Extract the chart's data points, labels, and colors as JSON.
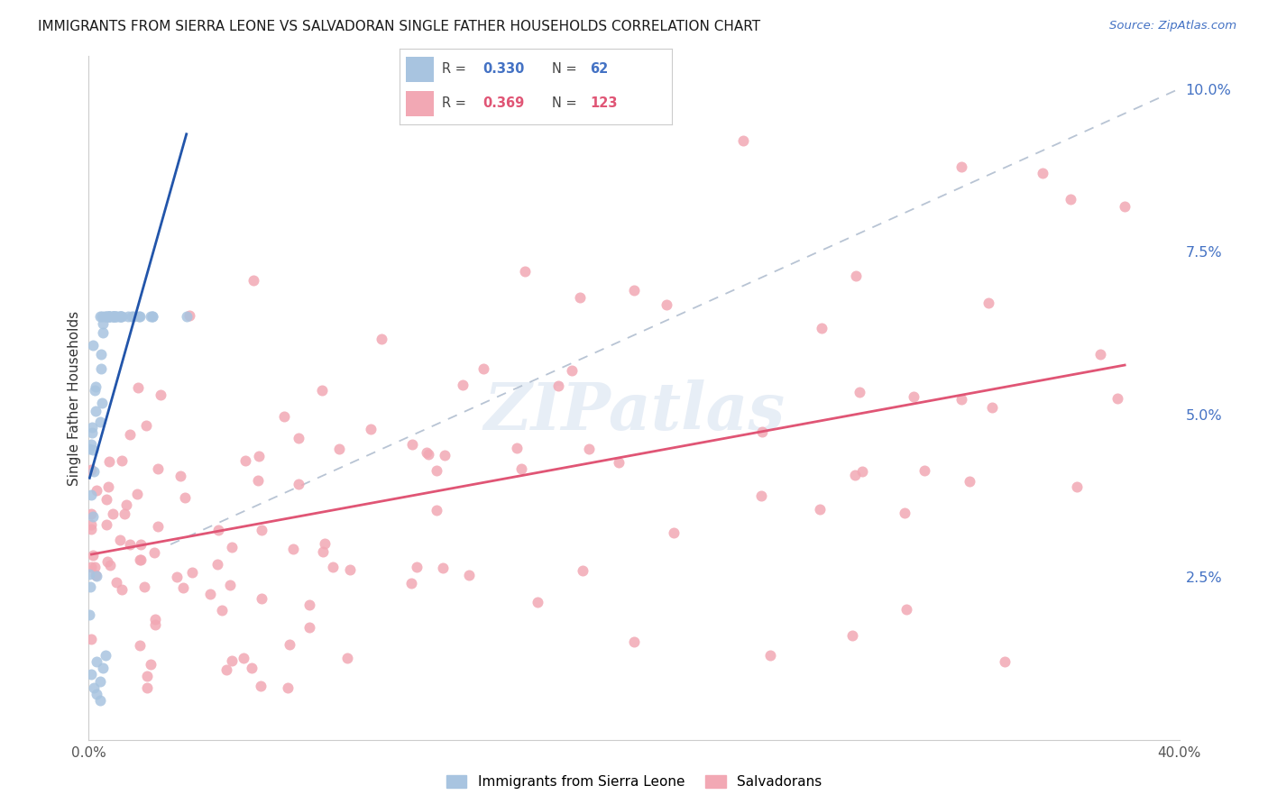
{
  "title": "IMMIGRANTS FROM SIERRA LEONE VS SALVADORAN SINGLE FATHER HOUSEHOLDS CORRELATION CHART",
  "source": "Source: ZipAtlas.com",
  "ylabel": "Single Father Households",
  "x_min": 0.0,
  "x_max": 0.4,
  "y_min": 0.0,
  "y_max": 0.105,
  "y_ticks": [
    0.0,
    0.025,
    0.05,
    0.075,
    0.1
  ],
  "y_tick_labels": [
    "",
    "2.5%",
    "5.0%",
    "7.5%",
    "10.0%"
  ],
  "x_tick_labels_show": [
    "0.0%",
    "40.0%"
  ],
  "legend_blue_R": "0.330",
  "legend_blue_N": "62",
  "legend_pink_R": "0.369",
  "legend_pink_N": "123",
  "blue_color": "#a8c4e0",
  "pink_color": "#f2a8b4",
  "blue_line_color": "#2255aa",
  "pink_line_color": "#e05575",
  "diagonal_line_color": "#b8c4d4",
  "watermark": "ZIPatlas",
  "background_color": "#ffffff",
  "grid_color": "#dde4ee",
  "title_color": "#1a1a1a",
  "source_color": "#4472c4",
  "axis_label_color": "#333333",
  "tick_color": "#4472c4"
}
